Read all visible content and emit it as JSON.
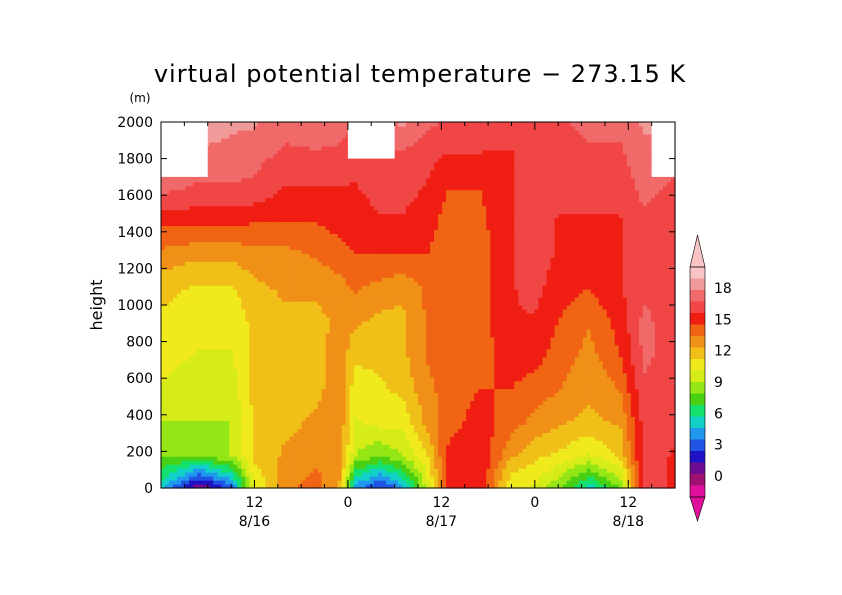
{
  "chart_data": {
    "type": "heatmap",
    "title": "virtual potential temperature − 273.15 K",
    "ylabel": "height",
    "yunit": "(m)",
    "ylim": [
      0,
      2000
    ],
    "yticks": [
      "0",
      "200",
      "400",
      "600",
      "800",
      "1000",
      "1200",
      "1400",
      "1600",
      "1800",
      "2000"
    ],
    "xlim_hours": [
      0,
      66
    ],
    "xticks": [
      {
        "hour": 12,
        "label": "12",
        "date": "8/16"
      },
      {
        "hour": 24,
        "label": "0",
        "date": ""
      },
      {
        "hour": 36,
        "label": "12",
        "date": "8/17"
      },
      {
        "hour": 48,
        "label": "0",
        "date": ""
      },
      {
        "hour": 60,
        "label": "12",
        "date": "8/18"
      }
    ],
    "colorbar": {
      "labels": [
        "0",
        "3",
        "6",
        "9",
        "12",
        "15",
        "18"
      ],
      "colors": [
        "#e0109c",
        "#a01070",
        "#6e0d94",
        "#1e12c4",
        "#2054e4",
        "#2098ee",
        "#10d0c8",
        "#14e06c",
        "#4ad012",
        "#94e614",
        "#d6ec18",
        "#f0e91c",
        "#f0c018",
        "#f09016",
        "#f06414",
        "#f01e12",
        "#f04646",
        "#f06a6a",
        "#f09a9a",
        "#f8c4c4"
      ],
      "min": -2,
      "max": 20,
      "step": 1.1
    },
    "series": [
      {
        "hour": 0,
        "z": [
          5,
          8,
          9,
          10,
          10.5,
          11,
          11.5,
          13,
          14.8,
          17,
          17.5,
          18
        ]
      },
      {
        "hour": 5,
        "z": [
          0,
          8,
          9,
          9.5,
          10,
          10.5,
          11,
          12.5,
          14.8,
          16.5,
          17.5,
          18.5
        ]
      },
      {
        "hour": 9,
        "z": [
          3,
          9,
          9,
          9.5,
          10,
          10.5,
          11,
          12.5,
          14.8,
          16.5,
          17.5,
          18
        ]
      },
      {
        "hour": 12,
        "z": [
          10,
          11.5,
          11.5,
          11.5,
          11.5,
          11.5,
          12,
          13,
          14.5,
          16.5,
          17,
          18
        ]
      },
      {
        "hour": 16,
        "z": [
          13,
          12.5,
          12,
          12,
          12,
          12,
          12.5,
          13,
          14.5,
          15.5,
          16.5,
          17
        ]
      },
      {
        "hour": 20,
        "z": [
          14,
          13,
          12.5,
          12,
          12,
          12,
          12.5,
          13.5,
          14.5,
          15.5,
          16.5,
          17.5
        ]
      },
      {
        "hour": 23,
        "z": [
          12,
          13,
          13,
          13,
          13,
          12.5,
          13,
          14,
          15,
          15.5,
          16.5,
          17
        ]
      },
      {
        "hour": 25,
        "z": [
          4,
          9,
          10,
          10.5,
          11.5,
          12.5,
          13.5,
          14.5,
          15,
          15.5,
          16,
          17
        ]
      },
      {
        "hour": 28,
        "z": [
          2,
          8,
          10.5,
          11,
          11.5,
          12,
          13,
          14.5,
          15.5,
          16,
          16.5,
          17
        ]
      },
      {
        "hour": 31,
        "z": [
          4,
          9,
          10.5,
          11.5,
          12,
          12,
          12.5,
          14.5,
          15.5,
          16,
          16.5,
          18
        ]
      },
      {
        "hour": 34,
        "z": [
          9,
          11,
          12.5,
          13,
          13.5,
          13.5,
          13.5,
          14.5,
          15,
          15.5,
          16,
          17
        ]
      },
      {
        "hour": 37,
        "z": [
          15,
          15,
          14,
          14,
          14,
          14,
          14,
          14,
          14,
          14.5,
          15.5,
          16.5
        ]
      },
      {
        "hour": 41,
        "z": [
          15.5,
          15.5,
          15,
          14.5,
          14,
          14,
          14,
          14,
          14.2,
          14.5,
          15.5,
          16.5
        ]
      },
      {
        "hour": 45,
        "z": [
          10,
          12.5,
          14,
          14.5,
          15,
          15.5,
          15.5,
          15.5,
          15.5,
          15.5,
          15.5,
          16
        ]
      },
      {
        "hour": 48,
        "z": [
          10,
          11.5,
          13,
          14,
          15,
          15.5,
          16,
          16,
          16,
          16,
          16,
          16.5
        ]
      },
      {
        "hour": 51,
        "z": [
          8,
          11,
          12.5,
          13.5,
          14,
          14.5,
          15,
          15.5,
          15.5,
          16,
          16,
          16.5
        ]
      },
      {
        "hour": 55,
        "z": [
          5,
          10,
          12,
          12.5,
          13,
          13.5,
          14.5,
          15,
          15.5,
          16,
          16.5,
          17
        ]
      },
      {
        "hour": 59,
        "z": [
          8,
          11.5,
          12.5,
          13.5,
          14.5,
          15,
          15.5,
          15.5,
          15.5,
          16,
          16.5,
          17
        ]
      },
      {
        "hour": 62,
        "z": [
          16,
          16,
          16,
          16.5,
          17,
          17,
          16.5,
          16.5,
          16.5,
          17,
          17.5,
          18
        ]
      },
      {
        "hour": 66,
        "z": [
          15.5,
          15.5,
          16,
          16,
          16,
          16,
          16,
          16,
          16,
          16.5,
          17,
          18
        ]
      }
    ],
    "missing_regions": [
      {
        "from_hour": 0,
        "to_hour": 6,
        "from_height": 1700,
        "to_height": 2000
      },
      {
        "from_hour": 24,
        "to_hour": 30,
        "from_height": 1800,
        "to_height": 2000
      },
      {
        "from_hour": 63,
        "to_hour": 66,
        "from_height": 1700,
        "to_height": 2000
      }
    ]
  }
}
